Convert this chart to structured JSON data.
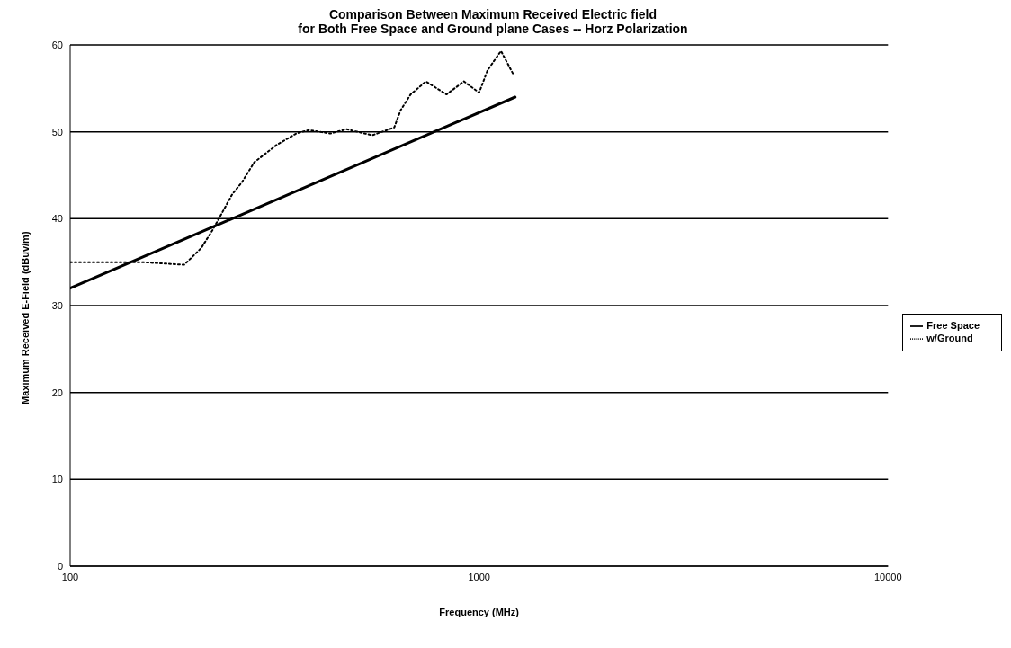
{
  "chart_data": {
    "type": "line",
    "title": "Comparison Between Maximum Received Electric field\nfor Both Free Space and Ground plane Cases -- Horz Polarization",
    "xlabel": "Frequency (MHz)",
    "ylabel": "Maximum Received E-Field (dBuv/m)",
    "log": "x",
    "xlim": [
      100,
      10000
    ],
    "xticks": [
      100,
      1000,
      10000
    ],
    "ylim": [
      0,
      60
    ],
    "yticks": [
      0,
      10,
      20,
      30,
      40,
      50,
      60
    ],
    "grid": "y",
    "legend": "right",
    "marker": "none",
    "series": [
      {
        "name": "Free Space",
        "color": "#000000",
        "line_style": "solid",
        "x": [
          100,
          1225
        ],
        "values": [
          32,
          54
        ]
      },
      {
        "name": "w/Ground",
        "color": "#000000",
        "line_style": "dotted",
        "x": [
          100,
          150,
          190,
          209,
          223,
          236,
          249,
          263,
          282,
          320,
          357,
          383,
          433,
          474,
          548,
          620,
          643,
          680,
          741,
          832,
          918,
          1000,
          1049,
          1131,
          1210
        ],
        "values": [
          35,
          35,
          34.7,
          36.6,
          38.7,
          40.8,
          42.8,
          44.2,
          46.5,
          48.5,
          49.8,
          50.2,
          49.8,
          50.3,
          49.6,
          50.5,
          52.5,
          54.3,
          55.8,
          54.3,
          55.8,
          54.5,
          57.1,
          59.3,
          56.7
        ]
      }
    ]
  }
}
